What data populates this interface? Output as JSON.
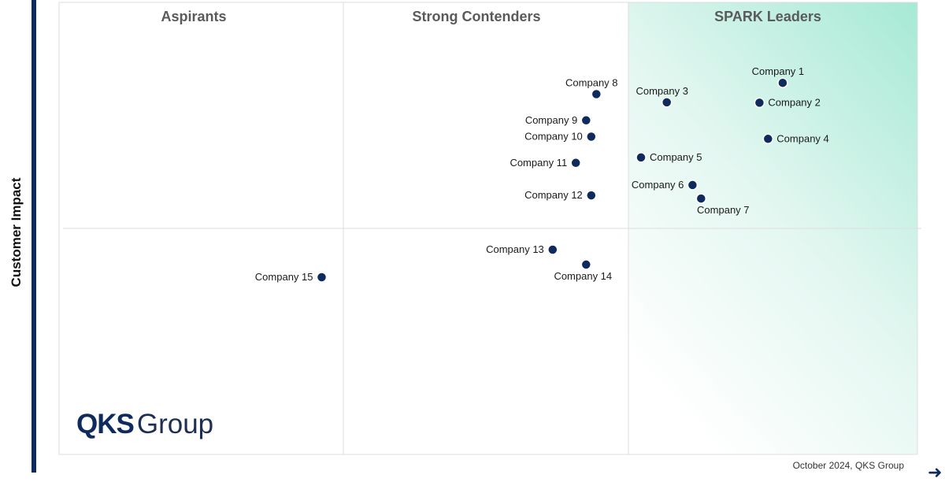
{
  "chart_data": {
    "type": "scatter",
    "ylabel": "Customer Impact",
    "xlabel": "",
    "xlim": [
      0,
      100
    ],
    "ylim": [
      0,
      100
    ],
    "quadrants": [
      {
        "name": "Aspirants"
      },
      {
        "name": "Strong Contenders"
      },
      {
        "name": "SPARK Leaders"
      }
    ],
    "points": [
      {
        "label": "Company 1",
        "x": 84.3,
        "y": 82.2,
        "label_pos": "above"
      },
      {
        "label": "Company 2",
        "x": 81.6,
        "y": 77.8,
        "label_pos": "right"
      },
      {
        "label": "Company 3",
        "x": 70.8,
        "y": 77.9,
        "label_pos": "above"
      },
      {
        "label": "Company 4",
        "x": 82.6,
        "y": 69.8,
        "label_pos": "right"
      },
      {
        "label": "Company 5",
        "x": 67.8,
        "y": 65.7,
        "label_pos": "right"
      },
      {
        "label": "Company 6",
        "x": 73.8,
        "y": 59.6,
        "label_pos": "left"
      },
      {
        "label": "Company 7",
        "x": 74.8,
        "y": 56.6,
        "label_pos": "below"
      },
      {
        "label": "Company 8",
        "x": 62.6,
        "y": 79.7,
        "label_pos": "above"
      },
      {
        "label": "Company 9",
        "x": 61.4,
        "y": 73.9,
        "label_pos": "left"
      },
      {
        "label": "Company 10",
        "x": 62.0,
        "y": 70.3,
        "label_pos": "left"
      },
      {
        "label": "Company 11",
        "x": 60.2,
        "y": 64.5,
        "label_pos": "left"
      },
      {
        "label": "Company 12",
        "x": 62.0,
        "y": 57.3,
        "label_pos": "left"
      },
      {
        "label": "Company 13",
        "x": 57.5,
        "y": 45.3,
        "label_pos": "left"
      },
      {
        "label": "Company 14",
        "x": 61.4,
        "y": 42.0,
        "label_pos": "below"
      },
      {
        "label": "Company 15",
        "x": 30.6,
        "y": 39.2,
        "label_pos": "left"
      }
    ]
  },
  "logo": {
    "brand": "QKS",
    "suffix": "Group"
  },
  "footer": {
    "text": "October 2024, QKS Group"
  },
  "colors": {
    "point": "#0f2a5c",
    "accent": "#a6e9d5",
    "axis": "#0f2a5c"
  }
}
